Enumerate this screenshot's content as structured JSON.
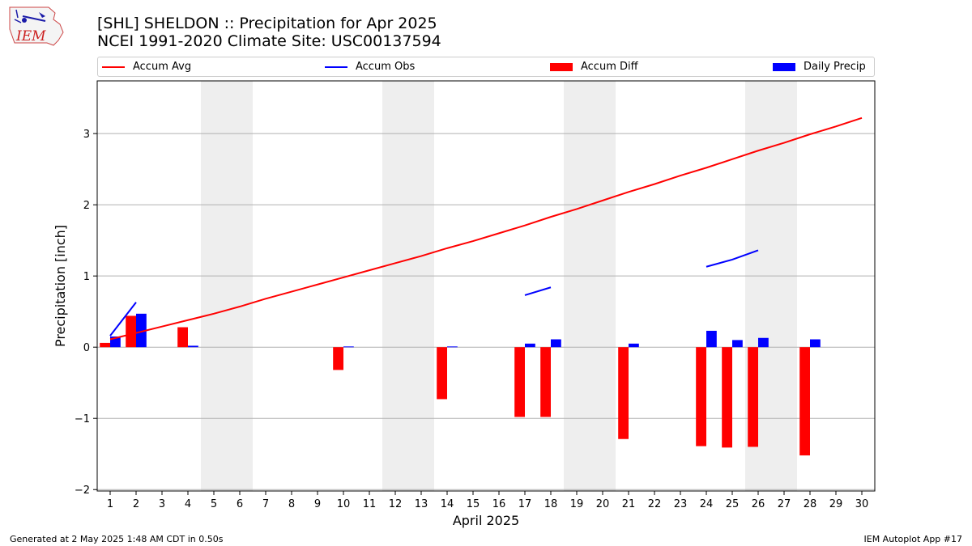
{
  "header": {
    "title_line1": "[SHL] SHELDON :: Precipitation for Apr 2025",
    "title_line2": "NCEI 1991-2020 Climate Site: USC00137594",
    "logo_text": "IEM"
  },
  "legend": {
    "items": [
      {
        "label": "Accum Avg",
        "color": "#ff0000",
        "kind": "line"
      },
      {
        "label": "Accum Obs",
        "color": "#0000ff",
        "kind": "line"
      },
      {
        "label": "Accum Diff",
        "color": "#ff0000",
        "kind": "box"
      },
      {
        "label": "Daily Precip",
        "color": "#0000ff",
        "kind": "box"
      }
    ]
  },
  "footer": {
    "left": "Generated at 2 May 2025 1:48 AM CDT in 0.50s",
    "right": "IEM Autoplot App #17"
  },
  "chart_data": {
    "type": "bar",
    "title": "[SHL] SHELDON :: Precipitation for Apr 2025",
    "subtitle": "NCEI 1991-2020 Climate Site: USC00137594",
    "xlabel": "April 2025",
    "ylabel": "Precipitation [inch]",
    "xlim": [
      0.5,
      30.5
    ],
    "ylim": [
      -2.02,
      3.74
    ],
    "x": [
      1,
      2,
      3,
      4,
      5,
      6,
      7,
      8,
      9,
      10,
      11,
      12,
      13,
      14,
      15,
      16,
      17,
      18,
      19,
      20,
      21,
      22,
      23,
      24,
      25,
      26,
      27,
      28,
      29,
      30
    ],
    "yticks": [
      -2,
      -1,
      0,
      1,
      2,
      3
    ],
    "ytick_labels": [
      "−2",
      "−1",
      "0",
      "1",
      "2",
      "3"
    ],
    "grid": "y",
    "legend_position": "top",
    "weekend_shading": [
      [
        4.5,
        6.5
      ],
      [
        11.5,
        13.5
      ],
      [
        18.5,
        20.5
      ],
      [
        25.5,
        27.5
      ]
    ],
    "series": [
      {
        "name": "Accum Avg",
        "type": "line",
        "color": "#ff0000",
        "values": [
          0.11,
          0.2,
          0.29,
          0.38,
          0.47,
          0.57,
          0.68,
          0.78,
          0.88,
          0.98,
          1.08,
          1.18,
          1.28,
          1.39,
          1.49,
          1.6,
          1.71,
          1.83,
          1.94,
          2.06,
          2.18,
          2.29,
          2.41,
          2.52,
          2.64,
          2.76,
          2.87,
          2.99,
          3.1,
          3.22
        ]
      },
      {
        "name": "Accum Obs",
        "type": "line",
        "color": "#0000ff",
        "values": [
          0.16,
          0.63,
          null,
          null,
          null,
          null,
          null,
          null,
          null,
          null,
          null,
          null,
          null,
          null,
          null,
          null,
          0.73,
          0.84,
          null,
          null,
          null,
          null,
          null,
          1.13,
          1.23,
          1.36,
          null,
          null,
          null,
          null
        ]
      },
      {
        "name": "Accum Diff",
        "type": "bar",
        "color": "#ff0000",
        "values": [
          0.06,
          0.44,
          null,
          0.28,
          null,
          null,
          null,
          null,
          null,
          -0.32,
          null,
          null,
          null,
          -0.73,
          null,
          null,
          -0.98,
          -0.98,
          null,
          null,
          -1.29,
          null,
          null,
          -1.39,
          -1.41,
          -1.4,
          null,
          -1.52,
          null,
          null
        ]
      },
      {
        "name": "Daily Precip",
        "type": "bar",
        "color": "#0000ff",
        "values": [
          0.15,
          0.47,
          null,
          0.02,
          null,
          null,
          null,
          null,
          null,
          0.01,
          null,
          null,
          null,
          0.01,
          null,
          null,
          0.05,
          0.11,
          null,
          null,
          0.05,
          null,
          null,
          0.23,
          0.1,
          0.13,
          null,
          0.11,
          null,
          null
        ]
      }
    ]
  }
}
